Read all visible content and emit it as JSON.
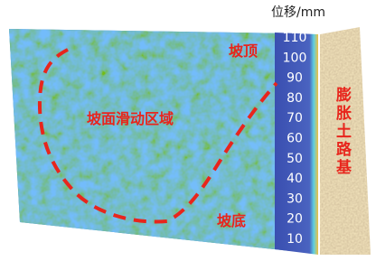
{
  "colorbar": {
    "label": "位移/mm",
    "ticks": [
      10,
      20,
      30,
      40,
      50,
      60,
      70,
      80,
      90,
      100,
      110
    ]
  },
  "labels": {
    "slope_top": "坡顶",
    "slide_zone": "坡面滑动区域",
    "slope_bottom": "坡底",
    "subgrade": "膨胀土路基"
  }
}
